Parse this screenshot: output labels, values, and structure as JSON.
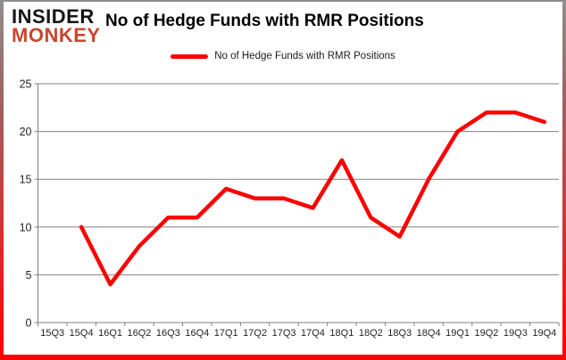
{
  "logo": {
    "top": "INSIDER",
    "bottom": "MONKEY",
    "accent_color": "#c7472e"
  },
  "header": {
    "title": "No of Hedge Funds with RMR Positions"
  },
  "legend": {
    "label": "No of Hedge Funds with RMR Positions",
    "swatch_color": "#fe0000"
  },
  "chart_data": {
    "type": "line",
    "title": "No of Hedge Funds with RMR Positions",
    "categories": [
      "15Q3",
      "15Q4",
      "16Q1",
      "16Q2",
      "16Q3",
      "16Q4",
      "17Q1",
      "17Q2",
      "17Q3",
      "17Q4",
      "18Q1",
      "18Q2",
      "18Q3",
      "18Q4",
      "19Q1",
      "19Q2",
      "19Q3",
      "19Q4"
    ],
    "series": [
      {
        "name": "No of Hedge Funds with RMR Positions",
        "color": "#fe0000",
        "values": [
          null,
          10,
          4,
          8,
          11,
          11,
          14,
          13,
          13,
          12,
          17,
          11,
          9,
          15,
          20,
          22,
          22,
          21
        ]
      }
    ],
    "ylim": [
      0,
      25
    ],
    "yticks": [
      0,
      5,
      10,
      15,
      20,
      25
    ],
    "grid": true,
    "legend_position": "top-center",
    "xlabel": "",
    "ylabel": ""
  },
  "style": {
    "grid_color": "#808080",
    "axis_color": "#808080",
    "label_color": "#242424",
    "line_width": 4.5,
    "y_label_size": 12.5,
    "x_label_size": 11
  }
}
